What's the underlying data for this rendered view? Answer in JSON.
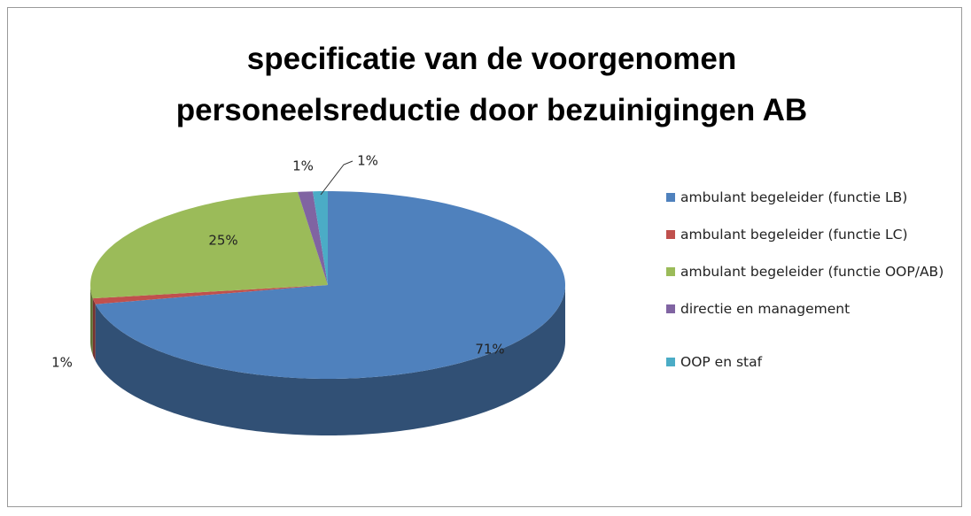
{
  "chart_data": {
    "type": "pie3d",
    "title": "specificatie van de voorgenomen personeelsreductie door bezuinigingen AB",
    "categories": [
      "ambulant begeleider (functie LB)",
      "ambulant begeleider (functie LC)",
      "ambulant begeleider (functie OOP/AB)",
      "directie en management",
      "OOP en staf"
    ],
    "values": [
      71,
      1,
      25,
      1,
      1
    ],
    "value_labels": [
      "71%",
      "1%",
      "25%",
      "1%",
      "1%"
    ],
    "colors": [
      "#4f81bd",
      "#c0504d",
      "#9bbb59",
      "#8064a2",
      "#4bacc6"
    ],
    "legend": "right"
  }
}
